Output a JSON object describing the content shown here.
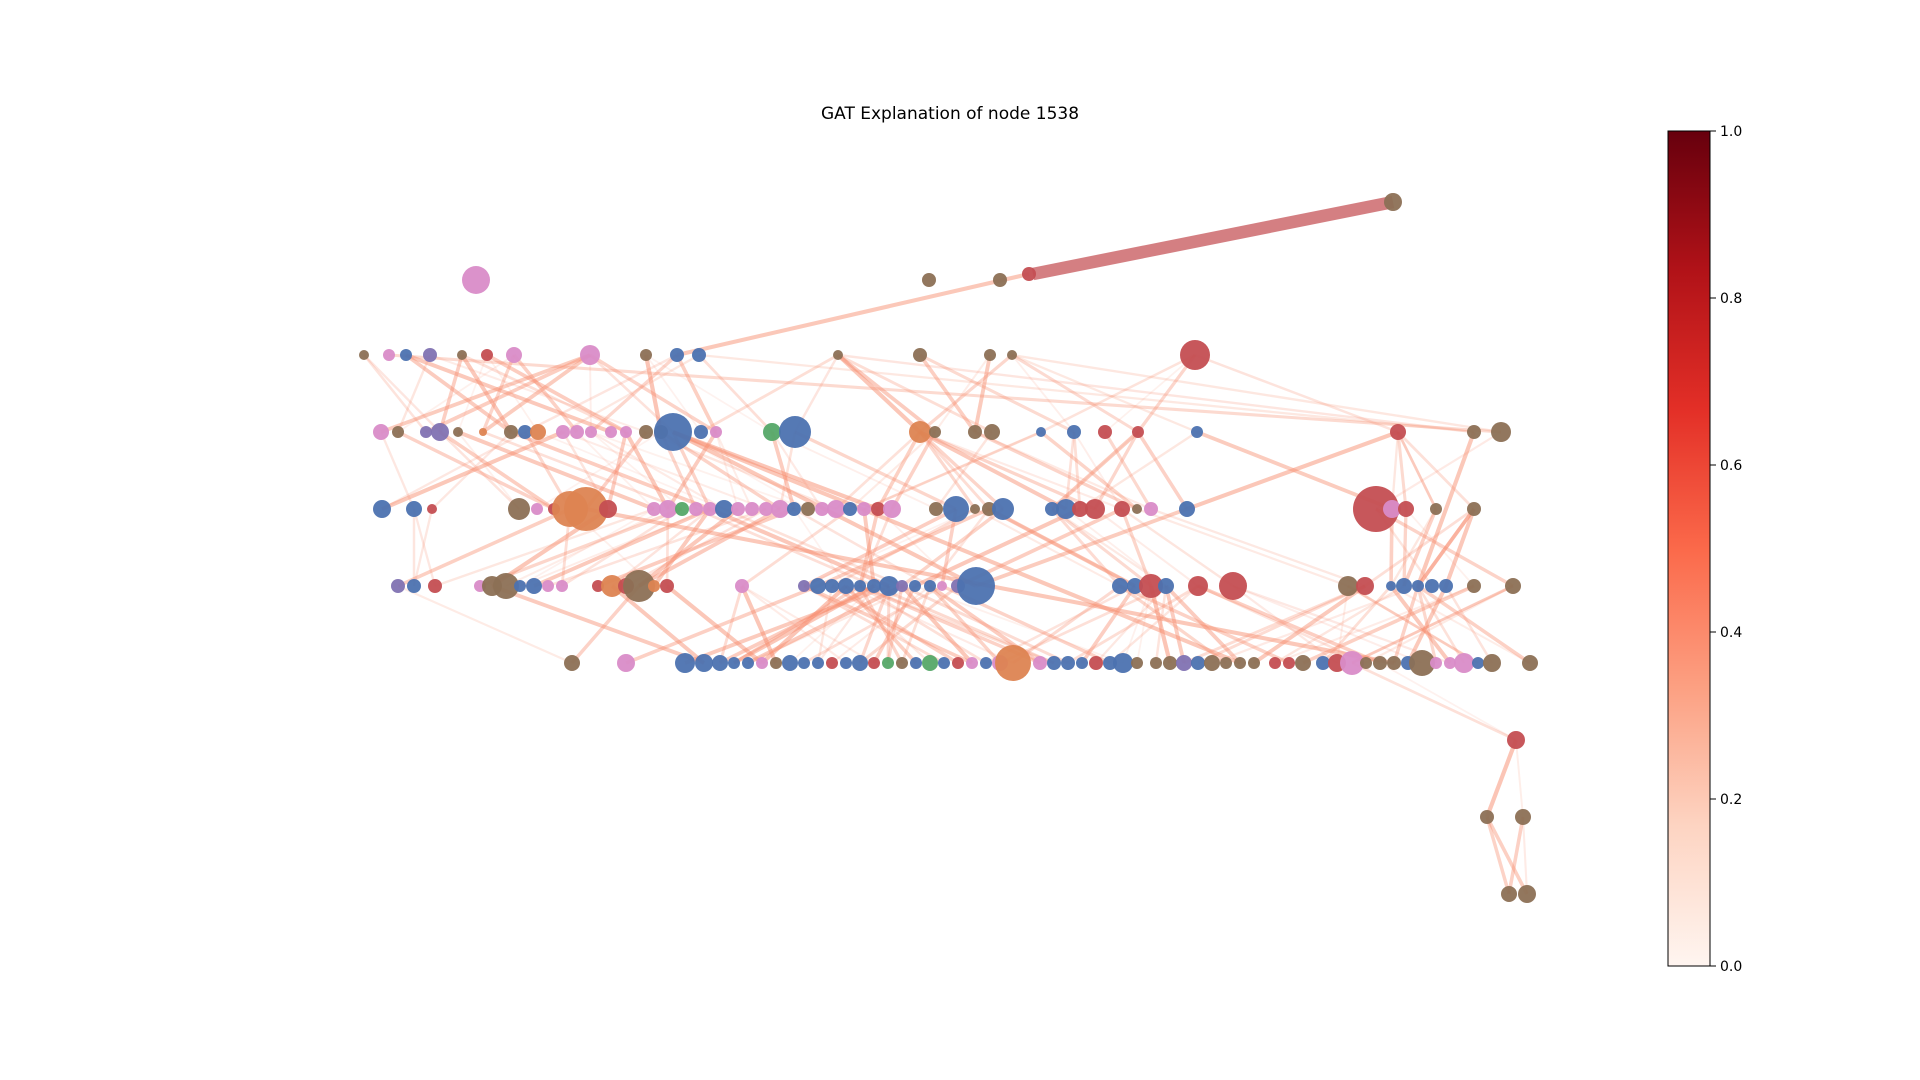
{
  "title": "GAT Explanation of node 1538",
  "colorbar": {
    "colormap": "Reds",
    "min": 0.0,
    "max": 1.0,
    "ticks": [
      "0.0",
      "0.2",
      "0.4",
      "0.6",
      "0.8",
      "1.0"
    ],
    "stops": [
      "#fff5f0",
      "#fdd4c2",
      "#fca082",
      "#fb694a",
      "#e32f27",
      "#b11218",
      "#67000d"
    ]
  },
  "node_colors": {
    "brown": "#8c7055",
    "pink": "#d98cc8",
    "blue": "#4c72b0",
    "purple": "#8172b2",
    "red": "#c44e52",
    "orange": "#dd8452",
    "green": "#55a868"
  },
  "graph": {
    "type": "explanation-subgraph",
    "levels": 10,
    "highlighted_edge_weight": 0.45
  }
}
